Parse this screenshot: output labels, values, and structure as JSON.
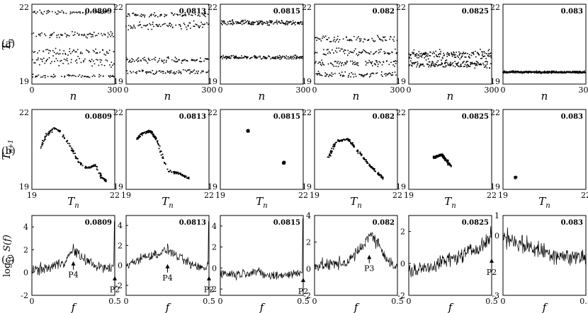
{
  "rows": [
    {
      "label": "(a)",
      "ylabel": "T_n",
      "xlabel": "n"
    },
    {
      "label": "(b)",
      "ylabel": "T_{n+1}",
      "xlabel": "T_n"
    },
    {
      "label": "(c)",
      "ylabel": "log_{10} S(f)",
      "xlabel": "f"
    }
  ],
  "params": [
    "0.0809",
    "0.0813",
    "0.0815",
    "0.082",
    "0.0825",
    "0.083"
  ],
  "chart_data": [
    {
      "type": "scatter",
      "row": "a",
      "xlim": [
        0,
        300
      ],
      "ylim": [
        19,
        22
      ],
      "x_ticks": [
        "0",
        "300"
      ],
      "y_ticks": [
        "19",
        "22"
      ],
      "ylabel": "T_n",
      "xlabel": "n",
      "panels": [
        {
          "param": "0.0809",
          "bands": [
            {
              "y": 21.7,
              "spread": 0.1
            },
            {
              "y": 20.85,
              "spread": 0.15
            },
            {
              "y": 20.2,
              "spread": 0.2
            },
            {
              "y": 19.85,
              "spread": 0.25
            },
            {
              "y": 19.3,
              "spread": 0.1
            }
          ]
        },
        {
          "param": "0.0813",
          "bands": [
            {
              "y": 21.6,
              "spread": 0.1
            },
            {
              "y": 21.2,
              "spread": 0.2
            },
            {
              "y": 19.9,
              "spread": 0.15
            },
            {
              "y": 19.45,
              "spread": 0.12
            }
          ]
        },
        {
          "param": "0.0815",
          "bands": [
            {
              "y": 21.3,
              "spread": 0.15
            },
            {
              "y": 20.0,
              "spread": 0.1
            }
          ]
        },
        {
          "param": "0.082",
          "bands": [
            {
              "y": 20.7,
              "spread": 0.2
            },
            {
              "y": 20.2,
              "spread": 0.2
            },
            {
              "y": 19.8,
              "spread": 0.2
            },
            {
              "y": 19.35,
              "spread": 0.15
            }
          ]
        },
        {
          "param": "0.0825",
          "bands": [
            {
              "y": 20.1,
              "spread": 0.25
            },
            {
              "y": 19.75,
              "spread": 0.2
            }
          ]
        },
        {
          "param": "0.083",
          "bands": [
            {
              "y": 19.45,
              "spread": 0.06
            }
          ]
        }
      ]
    },
    {
      "type": "scatter",
      "row": "b",
      "xlim": [
        19,
        22
      ],
      "ylim": [
        19,
        22
      ],
      "x_ticks": [
        "19",
        "22"
      ],
      "y_ticks": [
        "19",
        "22"
      ],
      "ylabel": "T_{n+1}",
      "xlabel": "T_n",
      "panels": [
        {
          "param": "0.0809",
          "curve": [
            [
              19.3,
              20.5
            ],
            [
              19.5,
              21.0
            ],
            [
              19.8,
              21.3
            ],
            [
              20.0,
              21.2
            ],
            [
              20.4,
              20.6
            ],
            [
              20.7,
              20.0
            ],
            [
              21.0,
              19.8
            ],
            [
              21.3,
              19.9
            ],
            [
              21.5,
              19.5
            ],
            [
              21.7,
              19.3
            ]
          ]
        },
        {
          "param": "0.0813",
          "curve": [
            [
              19.4,
              20.9
            ],
            [
              19.6,
              21.1
            ],
            [
              19.9,
              21.2
            ],
            [
              20.1,
              20.9
            ],
            [
              20.5,
              19.7
            ],
            [
              20.9,
              19.6
            ],
            [
              21.3,
              19.4
            ]
          ]
        },
        {
          "param": "0.0815",
          "curve": [
            [
              20.0,
              21.2
            ],
            [
              21.3,
              20.0
            ]
          ]
        },
        {
          "param": "0.082",
          "curve": [
            [
              19.5,
              20.2
            ],
            [
              19.8,
              20.8
            ],
            [
              20.2,
              20.9
            ],
            [
              20.6,
              20.4
            ],
            [
              21.0,
              19.9
            ],
            [
              21.3,
              19.6
            ],
            [
              21.5,
              19.4
            ]
          ]
        },
        {
          "param": "0.0825",
          "curve": [
            [
              19.9,
              20.2
            ],
            [
              20.2,
              20.3
            ],
            [
              20.5,
              19.9
            ]
          ]
        },
        {
          "param": "0.083",
          "curve": [
            [
              19.45,
              19.45
            ]
          ]
        }
      ]
    },
    {
      "type": "line",
      "row": "c",
      "xlim": [
        0,
        0.5
      ],
      "x_ticks": [
        "0",
        "0.5"
      ],
      "ylabel": "log_{10} S(f)",
      "xlabel": "f",
      "panels": [
        {
          "param": "0.0809",
          "ylim": [
            -2,
            5
          ],
          "y_ticks": [
            "-2",
            "0",
            "2",
            "4"
          ],
          "baseline": [
            [
              0.0,
              0.2
            ],
            [
              0.1,
              0.4
            ],
            [
              0.2,
              1.0
            ],
            [
              0.25,
              2.0
            ],
            [
              0.3,
              1.3
            ],
            [
              0.4,
              0.5
            ],
            [
              0.48,
              0.3
            ],
            [
              0.5,
              1.0
            ]
          ],
          "peaks": [
            {
              "f": 0.5,
              "v": 4.5
            }
          ],
          "annotations": [
            {
              "text": "P4",
              "f": 0.25,
              "v": 0.0
            },
            {
              "text": "P2",
              "f": 0.5,
              "v": -1.3
            }
          ]
        },
        {
          "param": "0.0813",
          "ylim": [
            -3,
            5
          ],
          "y_ticks": [
            "-2",
            "0",
            "2",
            "4"
          ],
          "baseline": [
            [
              0.0,
              0.0
            ],
            [
              0.1,
              0.8
            ],
            [
              0.2,
              1.2
            ],
            [
              0.25,
              1.6
            ],
            [
              0.3,
              1.0
            ],
            [
              0.4,
              0.0
            ],
            [
              0.48,
              -0.3
            ],
            [
              0.5,
              0.5
            ]
          ],
          "peaks": [
            {
              "f": 0.5,
              "v": 4.4
            }
          ],
          "annotations": [
            {
              "text": "P4",
              "f": 0.25,
              "v": -1.0
            },
            {
              "text": "P2",
              "f": 0.5,
              "v": -2.2
            }
          ]
        },
        {
          "param": "0.0815",
          "ylim": [
            -2.6,
            5
          ],
          "y_ticks": [
            "-2",
            "0",
            "2",
            "4"
          ],
          "baseline": [
            [
              0.0,
              -0.5
            ],
            [
              0.1,
              -0.6
            ],
            [
              0.2,
              -0.3
            ],
            [
              0.3,
              -0.8
            ],
            [
              0.4,
              -0.6
            ],
            [
              0.48,
              -0.5
            ],
            [
              0.5,
              0.0
            ]
          ],
          "peaks": [
            {
              "f": 0.5,
              "v": 4.7
            }
          ],
          "annotations": [
            {
              "text": "P2",
              "f": 0.5,
              "v": -2.0
            }
          ]
        },
        {
          "param": "0.082",
          "ylim": [
            -2,
            4
          ],
          "y_ticks": [
            "-2",
            "0",
            "2",
            "4"
          ],
          "baseline": [
            [
              0.0,
              0.2
            ],
            [
              0.1,
              0.3
            ],
            [
              0.2,
              0.5
            ],
            [
              0.28,
              1.5
            ],
            [
              0.33,
              2.6
            ],
            [
              0.38,
              2.0
            ],
            [
              0.45,
              0.5
            ],
            [
              0.5,
              0.0
            ]
          ],
          "peaks": [],
          "annotations": [
            {
              "text": "P3",
              "f": 0.33,
              "v": 0.2
            }
          ]
        },
        {
          "param": "0.0825",
          "ylim": [
            -2,
            3
          ],
          "y_ticks": [
            "-2",
            "0",
            "2"
          ],
          "baseline": [
            [
              0.0,
              -0.5
            ],
            [
              0.1,
              -0.3
            ],
            [
              0.2,
              0.1
            ],
            [
              0.3,
              0.4
            ],
            [
              0.4,
              0.9
            ],
            [
              0.48,
              1.4
            ],
            [
              0.5,
              2.0
            ]
          ],
          "peaks": [],
          "annotations": [
            {
              "text": "P2",
              "f": 0.5,
              "v": -0.4
            }
          ]
        },
        {
          "param": "0.083",
          "ylim": [
            -3,
            1
          ],
          "y_ticks": [
            "-3",
            "0",
            "1"
          ],
          "baseline": [
            [
              0.0,
              0.0
            ],
            [
              0.1,
              -0.4
            ],
            [
              0.2,
              -0.7
            ],
            [
              0.3,
              -0.9
            ],
            [
              0.4,
              -1.1
            ],
            [
              0.5,
              -1.0
            ]
          ],
          "peaks": [],
          "annotations": []
        }
      ]
    }
  ]
}
